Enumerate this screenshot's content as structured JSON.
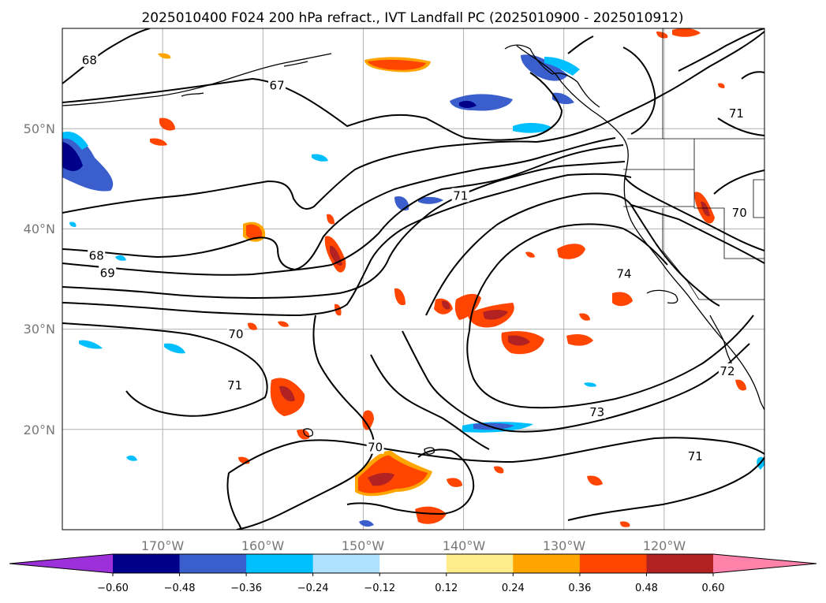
{
  "title": "2025010400 F024 200 hPa refract., IVT Landfall PC (2025010900 - 2025010912)",
  "map": {
    "projection": "PlateCarree",
    "lon_range": [
      -180,
      -110
    ],
    "lat_range": [
      10,
      60
    ],
    "lon_ticks": [
      "170°W",
      "160°W",
      "150°W",
      "140°W",
      "130°W",
      "120°W"
    ],
    "lat_ticks": [
      "50°N",
      "40°N",
      "30°N",
      "20°N"
    ],
    "grid": true
  },
  "contours": {
    "labels": [
      {
        "text": "68",
        "lon": -177.3,
        "lat": 56.8
      },
      {
        "text": "67",
        "lon": -158.6,
        "lat": 54.3
      },
      {
        "text": "68",
        "lon": -176.6,
        "lat": 37.3
      },
      {
        "text": "69",
        "lon": -175.5,
        "lat": 35.6
      },
      {
        "text": "70",
        "lon": -162.7,
        "lat": 29.5
      },
      {
        "text": "71",
        "lon": -162.8,
        "lat": 24.4
      },
      {
        "text": "70",
        "lon": -148.8,
        "lat": 18.2
      },
      {
        "text": "71",
        "lon": -140.3,
        "lat": 43.3
      },
      {
        "text": "74",
        "lon": -124.0,
        "lat": 35.5
      },
      {
        "text": "73",
        "lon": -126.7,
        "lat": 21.7
      },
      {
        "text": "72",
        "lon": -113.7,
        "lat": 25.8
      },
      {
        "text": "71",
        "lon": -116.9,
        "lat": 17.3
      },
      {
        "text": "71",
        "lon": -112.8,
        "lat": 51.5
      },
      {
        "text": "70",
        "lon": -112.5,
        "lat": 41.6
      }
    ]
  },
  "colorbar": {
    "ticks": [
      "−0.60",
      "−0.48",
      "−0.36",
      "−0.24",
      "−0.12",
      "0.12",
      "0.24",
      "0.36",
      "0.48",
      "0.60"
    ],
    "colors": [
      "#9b30d9",
      "#00008b",
      "#3a5fcd",
      "#00bfff",
      "#b0e2ff",
      "#ffffff",
      "#ffec8b",
      "#ffa500",
      "#ff4500",
      "#b22222",
      "#ff82ab"
    ]
  }
}
